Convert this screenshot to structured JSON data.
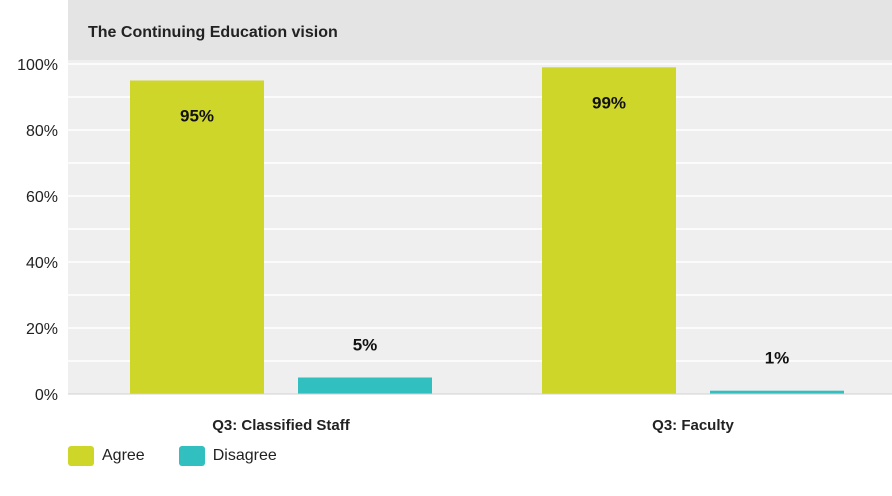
{
  "chart_data": {
    "type": "bar",
    "title": "The Continuing Education vision",
    "categories": [
      "Q3: Classified Staff",
      "Q3: Faculty"
    ],
    "series": [
      {
        "name": "Agree",
        "values": [
          95,
          99
        ],
        "labels": [
          "95%",
          "99%"
        ],
        "color": "#cfd62a"
      },
      {
        "name": "Disagree",
        "values": [
          5,
          1
        ],
        "labels": [
          "5%",
          "1%"
        ],
        "color": "#32bfbf"
      }
    ],
    "ylim": [
      0,
      100
    ],
    "yticks": [
      0,
      20,
      40,
      60,
      80,
      100
    ],
    "ytick_labels": [
      "0%",
      "20%",
      "40%",
      "60%",
      "80%",
      "100%"
    ],
    "grid": true,
    "legend_position": "bottom-left"
  }
}
